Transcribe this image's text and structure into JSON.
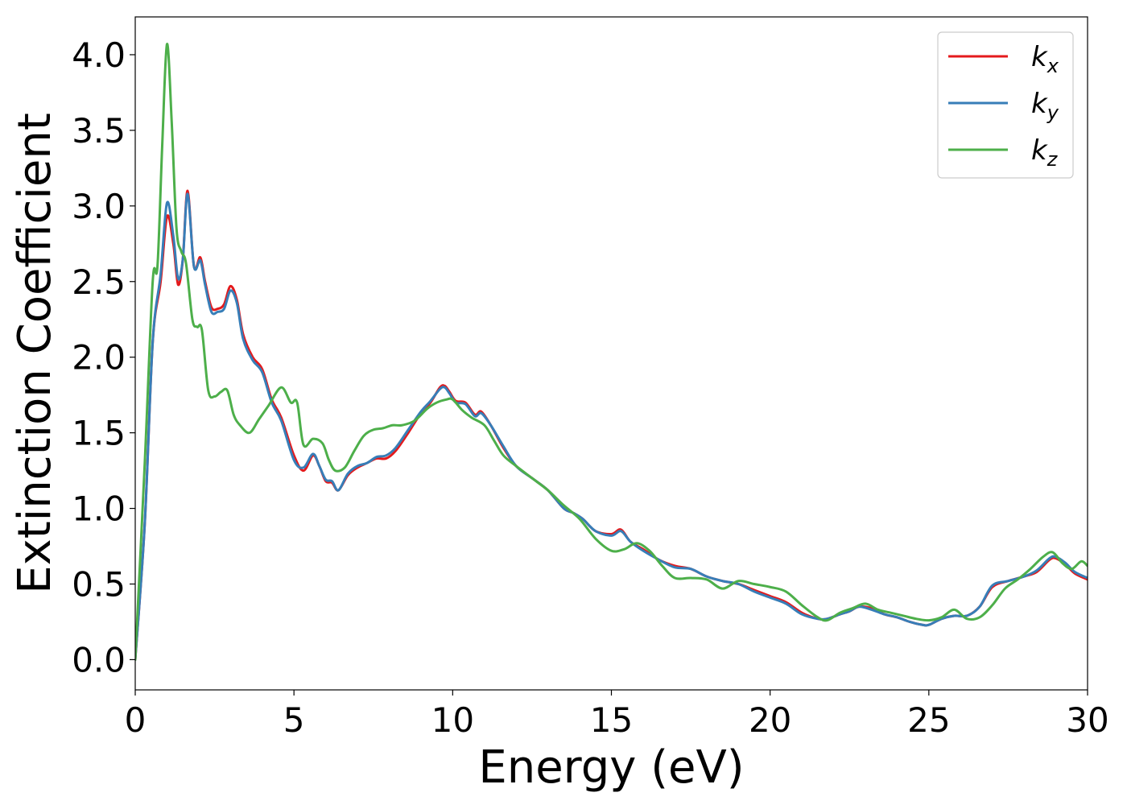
{
  "chart_data": {
    "type": "line",
    "title": "",
    "xlabel": "Energy (eV)",
    "ylabel": "Extinction Coefficient",
    "xlim": [
      0,
      30
    ],
    "ylim": [
      -0.2,
      4.25
    ],
    "xticks": [
      0,
      5,
      10,
      15,
      20,
      25,
      30
    ],
    "xtick_labels": [
      "0",
      "5",
      "10",
      "15",
      "20",
      "25",
      "30"
    ],
    "yticks": [
      0.0,
      0.5,
      1.0,
      1.5,
      2.0,
      2.5,
      3.0,
      3.5,
      4.0
    ],
    "ytick_labels": [
      "0.0",
      "0.5",
      "1.0",
      "1.5",
      "2.0",
      "2.5",
      "3.0",
      "3.5",
      "4.0"
    ],
    "grid": false,
    "legend_position": "top-right",
    "series": [
      {
        "name": "kx",
        "label_main": "k",
        "label_sub": "x",
        "color": "#e41a1c",
        "x": [
          0,
          0.3,
          0.55,
          0.8,
          1.0,
          1.2,
          1.35,
          1.5,
          1.65,
          1.85,
          2.05,
          2.2,
          2.4,
          2.6,
          2.8,
          3.0,
          3.2,
          3.4,
          3.7,
          4.0,
          4.3,
          4.6,
          5.0,
          5.3,
          5.6,
          5.8,
          6.0,
          6.2,
          6.4,
          6.7,
          7.0,
          7.3,
          7.6,
          7.9,
          8.2,
          8.6,
          9.0,
          9.3,
          9.6,
          9.75,
          9.9,
          10.1,
          10.4,
          10.7,
          10.9,
          11.2,
          11.6,
          12.0,
          12.5,
          13.0,
          13.5,
          13.8,
          14.1,
          14.5,
          15.0,
          15.3,
          15.6,
          16.0,
          16.5,
          17.0,
          17.5,
          18.0,
          18.5,
          19.0,
          19.5,
          20.0,
          20.5,
          21.0,
          21.5,
          21.8,
          22.2,
          22.5,
          22.8,
          23.2,
          23.6,
          24.0,
          24.4,
          24.8,
          25.0,
          25.4,
          25.8,
          26.2,
          26.6,
          27.0,
          27.5,
          28.0,
          28.4,
          28.8,
          29.0,
          29.3,
          29.6,
          30.0
        ],
        "y": [
          0.0,
          0.9,
          2.1,
          2.5,
          2.93,
          2.75,
          2.48,
          2.65,
          3.1,
          2.6,
          2.66,
          2.5,
          2.33,
          2.32,
          2.35,
          2.47,
          2.38,
          2.15,
          2.0,
          1.92,
          1.72,
          1.6,
          1.35,
          1.25,
          1.35,
          1.28,
          1.18,
          1.17,
          1.12,
          1.22,
          1.27,
          1.3,
          1.33,
          1.33,
          1.38,
          1.5,
          1.63,
          1.7,
          1.8,
          1.81,
          1.77,
          1.71,
          1.7,
          1.62,
          1.64,
          1.55,
          1.4,
          1.28,
          1.2,
          1.12,
          1.0,
          0.97,
          0.93,
          0.85,
          0.83,
          0.86,
          0.78,
          0.73,
          0.66,
          0.62,
          0.6,
          0.55,
          0.52,
          0.5,
          0.46,
          0.42,
          0.38,
          0.31,
          0.27,
          0.27,
          0.3,
          0.32,
          0.35,
          0.34,
          0.3,
          0.28,
          0.25,
          0.23,
          0.23,
          0.27,
          0.29,
          0.29,
          0.35,
          0.48,
          0.52,
          0.55,
          0.58,
          0.66,
          0.67,
          0.63,
          0.57,
          0.53
        ]
      },
      {
        "name": "ky",
        "label_main": "k",
        "label_sub": "y",
        "color": "#377eb8",
        "x": [
          0,
          0.3,
          0.55,
          0.8,
          1.0,
          1.2,
          1.35,
          1.5,
          1.65,
          1.85,
          2.05,
          2.2,
          2.4,
          2.6,
          2.8,
          3.0,
          3.2,
          3.4,
          3.7,
          4.0,
          4.3,
          4.6,
          5.0,
          5.3,
          5.6,
          5.8,
          6.0,
          6.2,
          6.4,
          6.7,
          7.0,
          7.3,
          7.6,
          7.9,
          8.2,
          8.6,
          9.0,
          9.3,
          9.6,
          9.75,
          9.9,
          10.1,
          10.4,
          10.7,
          10.9,
          11.2,
          11.6,
          12.0,
          12.5,
          13.0,
          13.5,
          13.8,
          14.1,
          14.5,
          15.0,
          15.3,
          15.6,
          16.0,
          16.5,
          17.0,
          17.5,
          18.0,
          18.5,
          19.0,
          19.5,
          20.0,
          20.5,
          21.0,
          21.5,
          21.8,
          22.2,
          22.5,
          22.8,
          23.2,
          23.6,
          24.0,
          24.4,
          24.8,
          25.0,
          25.4,
          25.8,
          26.2,
          26.6,
          27.0,
          27.5,
          28.0,
          28.4,
          28.8,
          29.0,
          29.3,
          29.6,
          30.0
        ],
        "y": [
          0.0,
          0.9,
          2.1,
          2.55,
          3.02,
          2.8,
          2.52,
          2.65,
          3.08,
          2.6,
          2.64,
          2.48,
          2.3,
          2.3,
          2.32,
          2.44,
          2.36,
          2.12,
          1.98,
          1.9,
          1.7,
          1.58,
          1.32,
          1.27,
          1.36,
          1.28,
          1.19,
          1.18,
          1.12,
          1.23,
          1.28,
          1.3,
          1.34,
          1.35,
          1.4,
          1.52,
          1.64,
          1.71,
          1.79,
          1.8,
          1.76,
          1.7,
          1.69,
          1.61,
          1.63,
          1.55,
          1.41,
          1.28,
          1.2,
          1.12,
          1.0,
          0.97,
          0.93,
          0.85,
          0.82,
          0.85,
          0.78,
          0.72,
          0.66,
          0.61,
          0.6,
          0.55,
          0.52,
          0.5,
          0.45,
          0.41,
          0.37,
          0.3,
          0.27,
          0.27,
          0.3,
          0.32,
          0.35,
          0.33,
          0.3,
          0.28,
          0.25,
          0.23,
          0.23,
          0.27,
          0.29,
          0.29,
          0.35,
          0.49,
          0.52,
          0.55,
          0.59,
          0.67,
          0.68,
          0.64,
          0.58,
          0.54
        ]
      },
      {
        "name": "kz",
        "label_main": "k",
        "label_sub": "z",
        "color": "#4daf4a",
        "x": [
          0,
          0.3,
          0.55,
          0.7,
          0.85,
          1.0,
          1.15,
          1.3,
          1.45,
          1.6,
          1.8,
          1.95,
          2.1,
          2.3,
          2.5,
          2.7,
          2.9,
          3.1,
          3.3,
          3.6,
          3.9,
          4.2,
          4.6,
          4.9,
          5.1,
          5.3,
          5.6,
          5.9,
          6.1,
          6.3,
          6.6,
          6.9,
          7.2,
          7.5,
          7.8,
          8.1,
          8.4,
          8.8,
          9.2,
          9.5,
          9.8,
          10.0,
          10.3,
          10.6,
          11.0,
          11.3,
          11.6,
          12.0,
          12.5,
          13.0,
          13.5,
          14.0,
          14.5,
          15.0,
          15.4,
          15.8,
          16.2,
          16.6,
          17.0,
          17.5,
          18.0,
          18.5,
          19.0,
          19.5,
          20.0,
          20.5,
          21.0,
          21.5,
          21.8,
          22.2,
          22.6,
          23.0,
          23.4,
          23.8,
          24.2,
          24.6,
          25.0,
          25.4,
          25.8,
          26.2,
          26.6,
          27.0,
          27.4,
          27.8,
          28.2,
          28.6,
          28.9,
          29.2,
          29.5,
          29.8,
          30.0
        ],
        "y": [
          0.0,
          1.3,
          2.5,
          2.6,
          3.4,
          4.07,
          3.55,
          2.85,
          2.7,
          2.62,
          2.25,
          2.2,
          2.18,
          1.78,
          1.74,
          1.77,
          1.78,
          1.62,
          1.55,
          1.5,
          1.59,
          1.68,
          1.8,
          1.7,
          1.7,
          1.42,
          1.46,
          1.43,
          1.32,
          1.25,
          1.27,
          1.38,
          1.48,
          1.52,
          1.53,
          1.55,
          1.55,
          1.58,
          1.66,
          1.7,
          1.72,
          1.72,
          1.65,
          1.6,
          1.55,
          1.45,
          1.35,
          1.28,
          1.2,
          1.12,
          1.02,
          0.93,
          0.8,
          0.72,
          0.73,
          0.77,
          0.72,
          0.62,
          0.54,
          0.54,
          0.53,
          0.47,
          0.52,
          0.5,
          0.48,
          0.45,
          0.36,
          0.28,
          0.26,
          0.31,
          0.34,
          0.37,
          0.33,
          0.31,
          0.29,
          0.27,
          0.26,
          0.28,
          0.33,
          0.27,
          0.28,
          0.36,
          0.47,
          0.53,
          0.6,
          0.68,
          0.71,
          0.64,
          0.6,
          0.65,
          0.62
        ]
      }
    ]
  }
}
